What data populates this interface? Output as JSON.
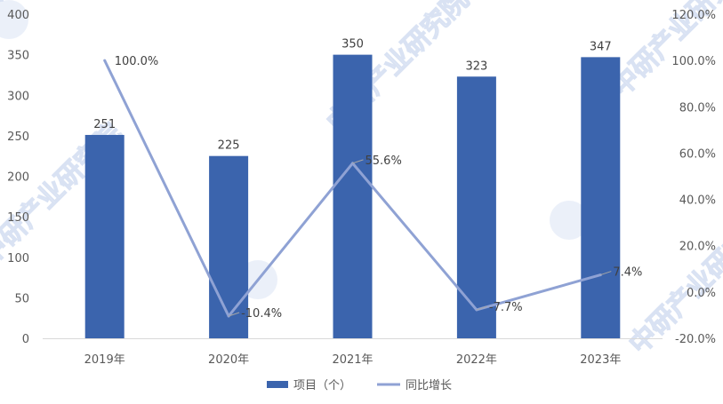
{
  "chart_data": {
    "type": "bar",
    "categories": [
      "2019年",
      "2020年",
      "2021年",
      "2022年",
      "2023年"
    ],
    "series": [
      {
        "name": "项目（个）",
        "type": "bar",
        "axis": "left",
        "values": [
          251,
          225,
          350,
          323,
          347
        ],
        "labels": [
          "251",
          "225",
          "350",
          "323",
          "347"
        ],
        "color": "#3b64ad"
      },
      {
        "name": "同比增长",
        "type": "line",
        "axis": "right",
        "values": [
          100.0,
          -10.4,
          55.6,
          -7.7,
          7.4
        ],
        "labels": [
          "100.0%",
          "-10.4%",
          "55.6%",
          "-7.7%",
          "7.4%"
        ],
        "color": "#8fa2d4"
      }
    ],
    "y_left": {
      "ylim": [
        0,
        400
      ],
      "ticks": [
        "0",
        "50",
        "100",
        "150",
        "200",
        "250",
        "300",
        "350",
        "400"
      ]
    },
    "y_right": {
      "ylim": [
        -20,
        120
      ],
      "ticks": [
        "-20.0%",
        "0.0%",
        "20.0%",
        "40.0%",
        "60.0%",
        "80.0%",
        "100.0%",
        "120.0%"
      ]
    },
    "grid": false,
    "legend_position": "bottom",
    "watermark": "中研产业研究院"
  }
}
